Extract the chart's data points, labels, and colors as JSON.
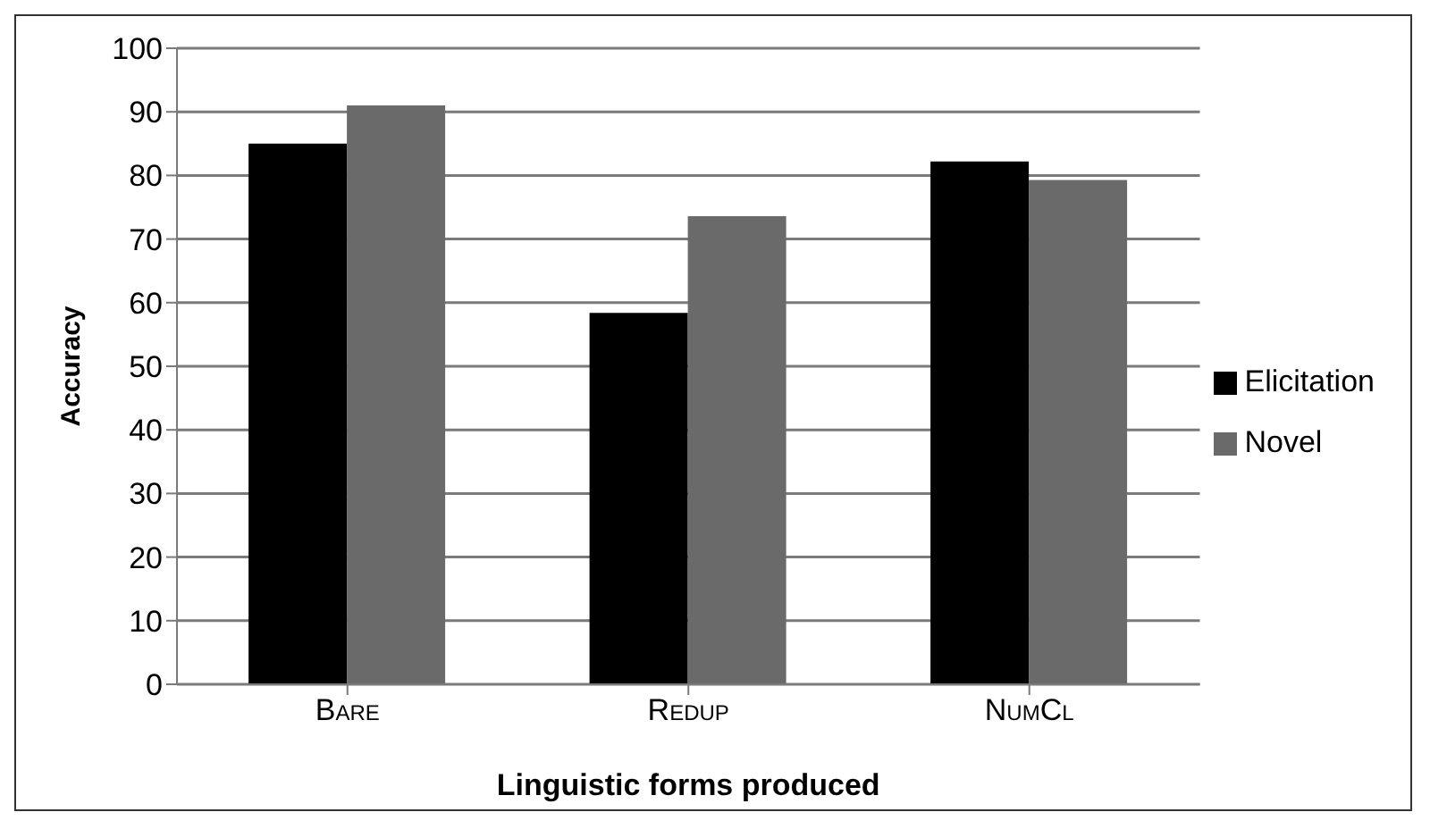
{
  "chart_data": {
    "type": "bar",
    "xlabel": "Linguistic forms produced",
    "ylabel": "Accuracy",
    "categories": [
      "Bare",
      "Redup",
      "NumCl"
    ],
    "series": [
      {
        "name": "Elicitation",
        "color": "#000000",
        "values": [
          85,
          58.4,
          82.2
        ]
      },
      {
        "name": "Novel",
        "color": "#6a6a6a",
        "values": [
          91,
          73.6,
          79.3
        ]
      }
    ],
    "ylim": [
      0,
      100
    ],
    "yticks": [
      0,
      10,
      20,
      30,
      40,
      50,
      60,
      70,
      80,
      90,
      100
    ],
    "grid": "y",
    "legend": "right"
  }
}
